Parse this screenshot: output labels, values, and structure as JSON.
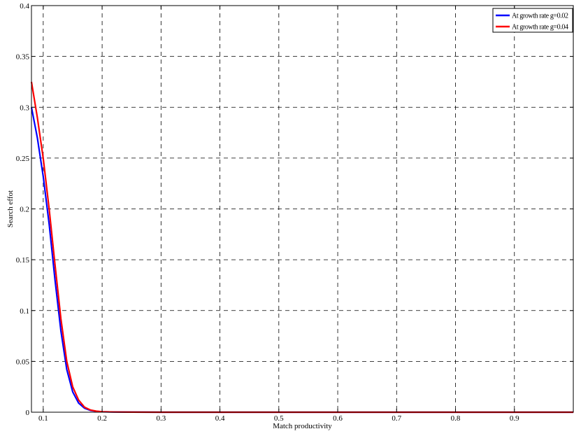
{
  "chart_data": {
    "type": "line",
    "title": "",
    "xlabel": "Match productivity",
    "ylabel": "Search effot",
    "xlim": [
      0.08,
      1.0
    ],
    "ylim": [
      0,
      0.4
    ],
    "xticks": [
      0.1,
      0.2,
      0.3,
      0.4,
      0.5,
      0.6,
      0.7,
      0.8,
      0.9
    ],
    "xtick_labels": [
      "0.1",
      "0.2",
      "0.3",
      "0.4",
      "0.5",
      "0.6",
      "0.7",
      "0.8",
      "0.9"
    ],
    "yticks": [
      0,
      0.05,
      0.1,
      0.15,
      0.2,
      0.25,
      0.3,
      0.35,
      0.4
    ],
    "ytick_labels": [
      "0",
      "0.05",
      "0.1",
      "0.15",
      "0.2",
      "0.25",
      "0.3",
      "0.35",
      "0.4"
    ],
    "grid": true,
    "grid_style": "dashed",
    "legend_position": "top-right",
    "series": [
      {
        "name": "At growth rate g=0.02",
        "color": "#0000ff",
        "x": [
          0.08,
          0.09,
          0.1,
          0.11,
          0.12,
          0.13,
          0.14,
          0.15,
          0.16,
          0.17,
          0.18,
          0.19,
          0.2,
          0.22,
          0.25,
          0.3,
          0.4,
          0.5,
          0.6,
          0.7,
          0.8,
          0.9,
          1.0
        ],
        "y": [
          0.3,
          0.27,
          0.232,
          0.185,
          0.13,
          0.08,
          0.042,
          0.02,
          0.009,
          0.004,
          0.0018,
          0.0009,
          0.0004,
          0.0002,
          0.0001,
          0.0,
          0.0,
          0.0,
          0.0,
          0.0,
          0.0,
          0.0,
          0.0
        ]
      },
      {
        "name": "At growth rate g=0.04",
        "color": "#ff0000",
        "x": [
          0.08,
          0.09,
          0.1,
          0.11,
          0.12,
          0.13,
          0.14,
          0.15,
          0.16,
          0.17,
          0.18,
          0.19,
          0.2,
          0.22,
          0.25,
          0.3,
          0.4,
          0.5,
          0.6,
          0.7,
          0.8,
          0.9,
          1.0
        ],
        "y": [
          0.325,
          0.29,
          0.25,
          0.2,
          0.145,
          0.092,
          0.05,
          0.025,
          0.012,
          0.005,
          0.0022,
          0.001,
          0.0005,
          0.0002,
          0.0001,
          0.0,
          0.0,
          0.0,
          0.0,
          0.0,
          0.0,
          0.0,
          0.0
        ]
      }
    ]
  }
}
